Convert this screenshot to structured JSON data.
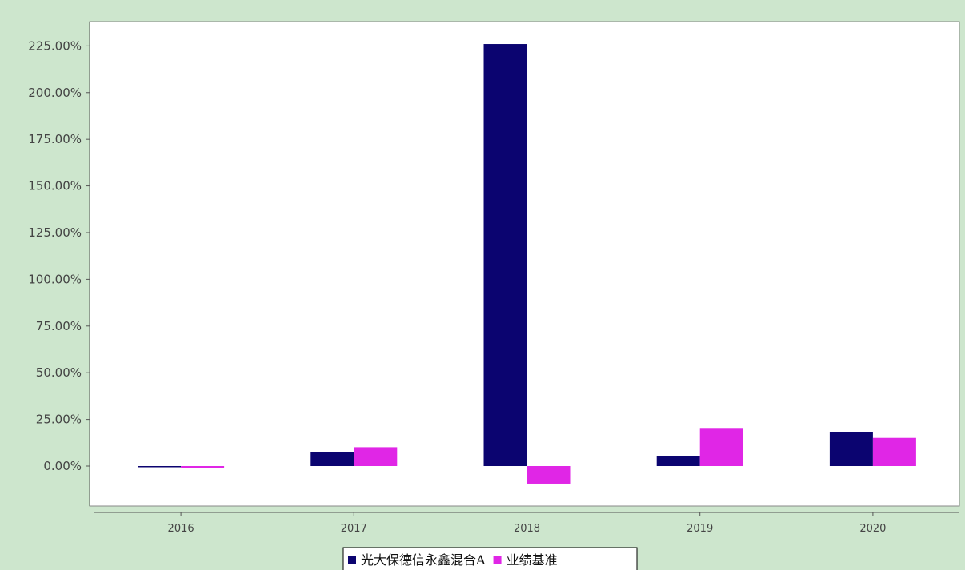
{
  "chart_data": {
    "type": "bar",
    "title": "",
    "xlabel": "",
    "ylabel": "",
    "categories": [
      "2016",
      "2017",
      "2018",
      "2019",
      "2020"
    ],
    "series": [
      {
        "name": "光大保德信永鑫混合A",
        "values": [
          -0.4,
          7.3,
          226.0,
          5.3,
          18.0
        ],
        "color": "#0b0470"
      },
      {
        "name": "业绩基准",
        "values": [
          -1.0,
          10.1,
          -9.4,
          20.0,
          15.1
        ],
        "color": "#e026e6"
      }
    ],
    "ylim": [
      -21.4,
      238.0
    ],
    "yticks": [
      0,
      25,
      50,
      75,
      100,
      125,
      150,
      175,
      200,
      225
    ],
    "ytick_labels": [
      "0.00%",
      "25.00%",
      "50.00%",
      "75.00%",
      "100.00%",
      "125.00%",
      "150.00%",
      "175.00%",
      "200.00%",
      "225.00%"
    ],
    "grid": false,
    "legend_position": "bottom-center",
    "colors": {
      "background": "#cde6cd",
      "plot_background": "#ffffff"
    }
  }
}
